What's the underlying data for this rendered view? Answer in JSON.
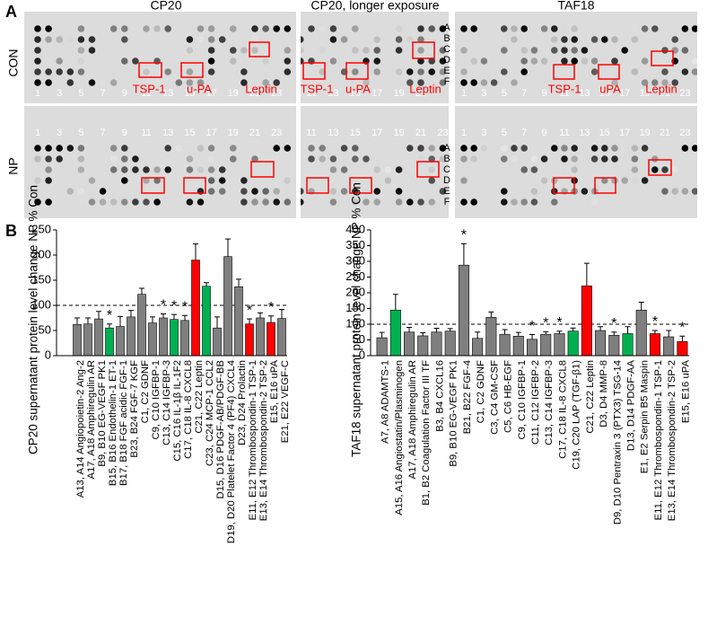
{
  "panel_a": {
    "label": "A",
    "row_labels": [
      "CON",
      "NP"
    ],
    "row_letters": [
      "A",
      "B",
      "C",
      "D",
      "E",
      "F"
    ],
    "blots": [
      {
        "title": "CP20",
        "top_numbers": [
          "1",
          "3",
          "5",
          "7",
          "9",
          "11",
          "13",
          "15",
          "17",
          "19",
          "21",
          "23"
        ],
        "bottom_numbers": [
          "1",
          "3",
          "5",
          "7",
          "9",
          "11",
          "13",
          "15",
          "17",
          "19",
          "21",
          "23"
        ],
        "box_labels": [
          "TSP-1",
          "u-PA",
          "Leptin"
        ]
      },
      {
        "title": "CP20, longer exposure",
        "top_numbers": [
          "11",
          "13",
          "15",
          "17",
          "19",
          "21"
        ],
        "bottom_numbers": [
          "11",
          "13",
          "15",
          "17",
          "19",
          "21",
          "23"
        ],
        "box_labels": [
          "TSP-1",
          "u-PA",
          "Leptin"
        ]
      },
      {
        "title": "TAF18",
        "top_numbers": [
          "1",
          "3",
          "5",
          "7",
          "9",
          "11",
          "13",
          "15",
          "17",
          "19",
          "21",
          "23"
        ],
        "bottom_numbers": [
          "1",
          "3",
          "5",
          "7",
          "9",
          "11",
          "13",
          "15",
          "17",
          "19",
          "21",
          "23"
        ],
        "box_labels": [
          "TSP-1",
          "uPA",
          "Leptin"
        ]
      }
    ]
  },
  "panel_b": {
    "label": "B"
  },
  "chart_data": [
    {
      "type": "bar",
      "ylabel": "CP20  supernatant  protein level change  NP % Con",
      "categories": [
        "A13, A14 Angiopoietin-2 Ang-2",
        "A17, A18 Amphiregulin AR",
        "B9, B10 EG-VEGF PK1",
        "B15, B16 Endothelin-1 ET-1",
        "B17, B18 FGF acidic FGF-1",
        "B23, B24 FGF-7  KGF",
        "C1, C2 GDNF",
        "C9, C10 IGFBP-1",
        "C13, C14 IGFBP-3",
        "C15, C16 IL-1β  IL-1F2",
        "C17, C18 IL-8  CXCL8",
        "C21, C22 Leptin",
        "C23, C24 MCP-1  CCL2",
        "D15, D16 PDGF-AB/PDGF-BB",
        "D19, D20 Platelet Factor 4 (PF4)  CXCL4",
        "D23, D24 Prolactin",
        "E11, E12 Thrombospondin-1  TSP-1",
        "E13, E14 Thrombospondin-2  TSP-2",
        "E15, E16 uPA",
        "E21, E22 VEGF-C"
      ],
      "values": [
        62,
        63,
        73,
        55,
        58,
        77,
        122,
        65,
        75,
        72,
        70,
        190,
        138,
        55,
        197,
        137,
        63,
        75,
        66,
        74
      ],
      "errors": [
        13,
        12,
        15,
        8,
        20,
        13,
        12,
        12,
        8,
        10,
        10,
        32,
        7,
        22,
        35,
        15,
        10,
        10,
        13,
        18
      ],
      "colors": [
        "#7f7f7f",
        "#7f7f7f",
        "#7f7f7f",
        "#00b050",
        "#7f7f7f",
        "#7f7f7f",
        "#7f7f7f",
        "#7f7f7f",
        "#7f7f7f",
        "#00b050",
        "#7f7f7f",
        "#ff0000",
        "#00b050",
        "#7f7f7f",
        "#7f7f7f",
        "#7f7f7f",
        "#ff0000",
        "#7f7f7f",
        "#ff0000",
        "#7f7f7f"
      ],
      "significance": [
        null,
        null,
        null,
        "*",
        null,
        null,
        null,
        null,
        "*",
        "*",
        "*",
        null,
        null,
        null,
        null,
        null,
        "*",
        null,
        "*",
        null
      ],
      "reference_line": 100,
      "ylim": [
        0,
        250
      ],
      "yticks": [
        0,
        50,
        100,
        150,
        200,
        250
      ]
    },
    {
      "type": "bar",
      "ylabel": "TAF18 supernatant protein level change  NP % Con",
      "categories": [
        "A7, A8 ADAMTS-1",
        "A15, A16 Angiostatin/Plasminogen",
        "A17, A18 Amphiregulin AR",
        "B1, B2 Coagulation Factor III TF",
        "B3, B4 CXCL16",
        "B9, B10 EG-VEGF PK1",
        "B21, B22 FGF-4",
        "C1, C2 GDNF",
        "C3, C4 GM-CSF",
        "C5, C6 HB-EGF",
        "C9, C10 IGFBP-1",
        "C11, C12 IGFBP-2",
        "C13, C14 IGFBP-3",
        "C17, C18 IL-8 CXCL8",
        "C19, C20 LAP (TGF-β1)",
        "C21, C22 Leptin",
        "D3, D4 MMP-8",
        "D9, D10 Pentraxin 3 (PTX3)  TSG-14",
        "D13, D14 PDGF-AA",
        "E1, E2 Serpin B5  Maspin",
        "E11, E12 Thrombospondin-1  TSP-1",
        "E13, E14 Thrombospondin-2  TSP-2",
        "E15, E16 uPA"
      ],
      "values": [
        57,
        145,
        75,
        63,
        75,
        78,
        288,
        55,
        122,
        68,
        62,
        52,
        68,
        70,
        78,
        222,
        80,
        65,
        70,
        145,
        70,
        60,
        45
      ],
      "errors": [
        17,
        50,
        15,
        10,
        12,
        8,
        68,
        20,
        17,
        15,
        12,
        15,
        8,
        8,
        10,
        72,
        12,
        10,
        22,
        25,
        10,
        20,
        17
      ],
      "colors": [
        "#7f7f7f",
        "#00b050",
        "#7f7f7f",
        "#7f7f7f",
        "#7f7f7f",
        "#7f7f7f",
        "#7f7f7f",
        "#7f7f7f",
        "#7f7f7f",
        "#7f7f7f",
        "#7f7f7f",
        "#7f7f7f",
        "#7f7f7f",
        "#7f7f7f",
        "#00b050",
        "#ff0000",
        "#7f7f7f",
        "#7f7f7f",
        "#00b050",
        "#7f7f7f",
        "#ff0000",
        "#7f7f7f",
        "#ff0000"
      ],
      "significance": [
        null,
        null,
        null,
        null,
        null,
        null,
        "*",
        null,
        null,
        null,
        null,
        "*",
        "*",
        "*",
        null,
        null,
        null,
        "*",
        null,
        null,
        "*",
        null,
        "*"
      ],
      "reference_line": 100,
      "ylim": [
        0,
        400
      ],
      "yticks": [
        0,
        50,
        100,
        150,
        200,
        250,
        300,
        350,
        400
      ]
    }
  ]
}
